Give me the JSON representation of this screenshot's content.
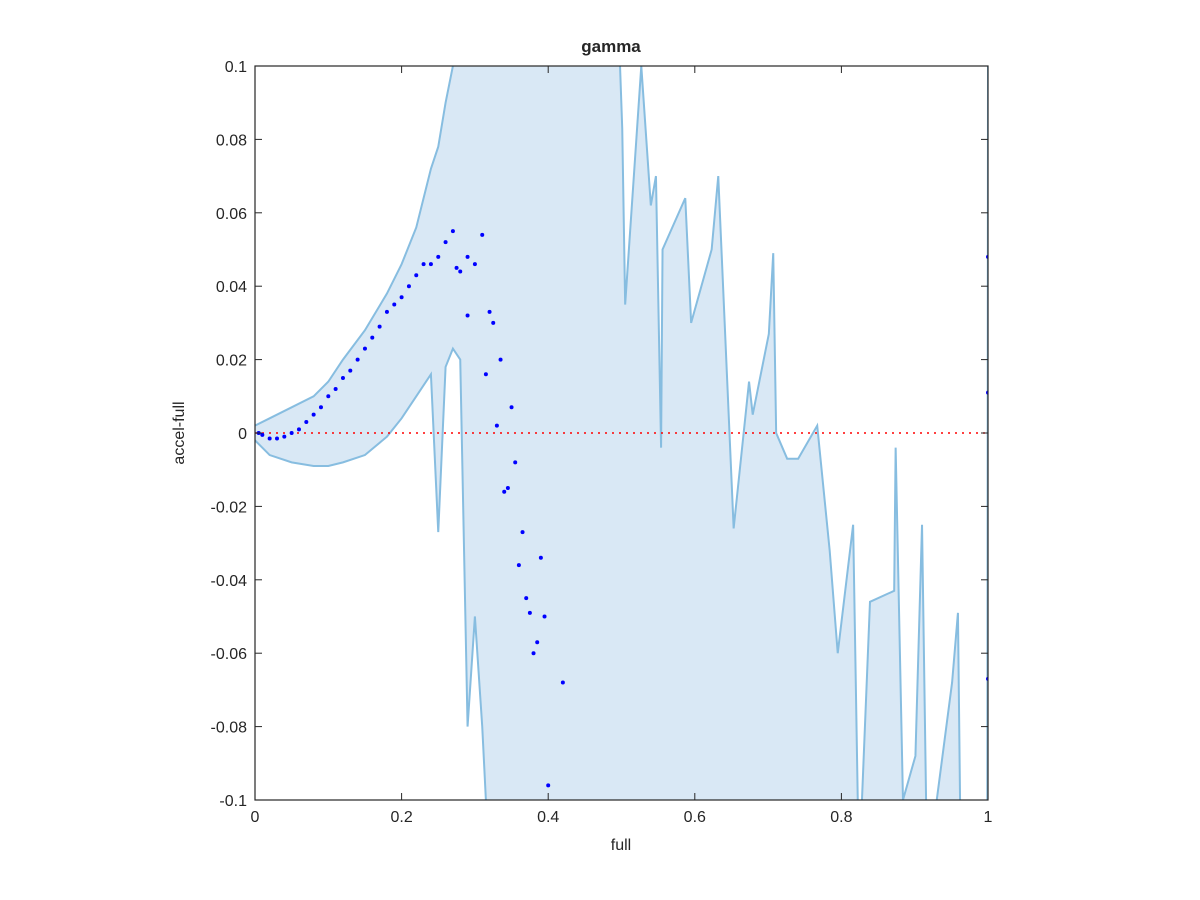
{
  "chart_data": {
    "type": "scatter",
    "title": "gamma",
    "x_label": "full",
    "y_label": "accel-full",
    "xlim": [
      0,
      1
    ],
    "ylim": [
      -0.1,
      0.1
    ],
    "xticks": [
      0,
      0.2,
      0.4,
      0.6,
      0.8,
      1
    ],
    "yticks": [
      -0.1,
      -0.08,
      -0.06,
      -0.04,
      -0.02,
      0,
      0.02,
      0.04,
      0.06,
      0.08,
      0.1
    ],
    "color": "#0000ff",
    "x": [
      0.005,
      0.01,
      0.02,
      0.03,
      0.04,
      0.05,
      0.06,
      0.07,
      0.08,
      0.09,
      0.1,
      0.11,
      0.12,
      0.13,
      0.14,
      0.15,
      0.16,
      0.17,
      0.18,
      0.19,
      0.2,
      0.21,
      0.22,
      0.23,
      0.24,
      0.25,
      0.26,
      0.27,
      0.275,
      0.28,
      0.29,
      0.29,
      0.3,
      0.31,
      0.315,
      0.32,
      0.325,
      0.33,
      0.335,
      0.34,
      0.345,
      0.35,
      0.355,
      0.36,
      0.365,
      0.37,
      0.375,
      0.38,
      0.385,
      0.39,
      0.395,
      0.4,
      0.42,
      1.0,
      1.0,
      1.0
    ],
    "values": [
      0.0,
      -0.0005,
      -0.0015,
      -0.0015,
      -0.001,
      0,
      0.001,
      0.003,
      0.005,
      0.007,
      0.01,
      0.012,
      0.015,
      0.017,
      0.02,
      0.023,
      0.026,
      0.029,
      0.033,
      0.035,
      0.037,
      0.04,
      0.043,
      0.046,
      0.046,
      0.048,
      0.052,
      0.055,
      0.045,
      0.044,
      0.048,
      0.032,
      0.046,
      0.054,
      0.016,
      0.033,
      0.03,
      0.002,
      0.02,
      -0.016,
      -0.015,
      0.007,
      -0.008,
      -0.036,
      -0.027,
      -0.045,
      -0.049,
      -0.06,
      -0.057,
      -0.034,
      -0.05,
      -0.096,
      -0.068,
      0.048,
      0.011,
      -0.067
    ],
    "band": {
      "color": "#87bde0",
      "fill": "#d9e8f5",
      "x": [
        0,
        0.02,
        0.05,
        0.08,
        0.1,
        0.12,
        0.15,
        0.18,
        0.2,
        0.22,
        0.24,
        0.25,
        0.26,
        0.27,
        0.28,
        0.29,
        0.3,
        0.31,
        0.32,
        0.4,
        0.498,
        0.501,
        0.505,
        0.527,
        0.54,
        0.547,
        0.554,
        0.556,
        0.587,
        0.595,
        0.623,
        0.632,
        0.653,
        0.674,
        0.679,
        0.701,
        0.707,
        0.711,
        0.726,
        0.741,
        0.767,
        0.784,
        0.795,
        0.816,
        0.824,
        0.839,
        0.872,
        0.874,
        0.884,
        0.901,
        0.91,
        0.917,
        0.951,
        0.959,
        0.963,
        0.999,
        1.0
      ],
      "upper": [
        0.002,
        0.004,
        0.007,
        0.01,
        0.014,
        0.02,
        0.028,
        0.038,
        0.046,
        0.056,
        0.072,
        0.078,
        0.09,
        0.1,
        0.12,
        0.12,
        0.12,
        0.12,
        0.12,
        0.12,
        0.1,
        0.083,
        0.035,
        0.1,
        0.062,
        0.07,
        -0.004,
        0.05,
        0.064,
        0.03,
        0.05,
        0.07,
        -0.026,
        0.014,
        0.005,
        0.027,
        0.049,
        0,
        -0.007,
        -0.007,
        0.002,
        -0.032,
        -0.06,
        -0.025,
        -0.12,
        -0.046,
        -0.043,
        -0.004,
        -0.1,
        -0.088,
        -0.025,
        -0.12,
        -0.068,
        -0.049,
        -0.12,
        -0.12,
        0.1
      ],
      "lower": [
        -0.002,
        -0.006,
        -0.008,
        -0.009,
        -0.009,
        -0.008,
        -0.006,
        -0.001,
        0.004,
        0.01,
        0.016,
        -0.027,
        0.018,
        0.023,
        0.02,
        -0.08,
        -0.05,
        -0.08,
        -0.12,
        -0.12,
        -0.12,
        -0.12,
        -0.12,
        -0.12,
        -0.12,
        -0.12,
        -0.12,
        -0.12,
        -0.12,
        -0.12,
        -0.12,
        -0.12,
        -0.12,
        -0.12,
        -0.12,
        -0.12,
        -0.12,
        -0.12,
        -0.12,
        -0.12,
        -0.12,
        -0.12,
        -0.12,
        -0.12,
        -0.12,
        -0.12,
        -0.12,
        -0.12,
        -0.12,
        -0.12,
        -0.12,
        -0.12,
        -0.12,
        -0.12,
        -0.12,
        -0.12,
        -0.12
      ]
    },
    "reference_line": {
      "value": 0,
      "color": "#ff0000"
    }
  }
}
